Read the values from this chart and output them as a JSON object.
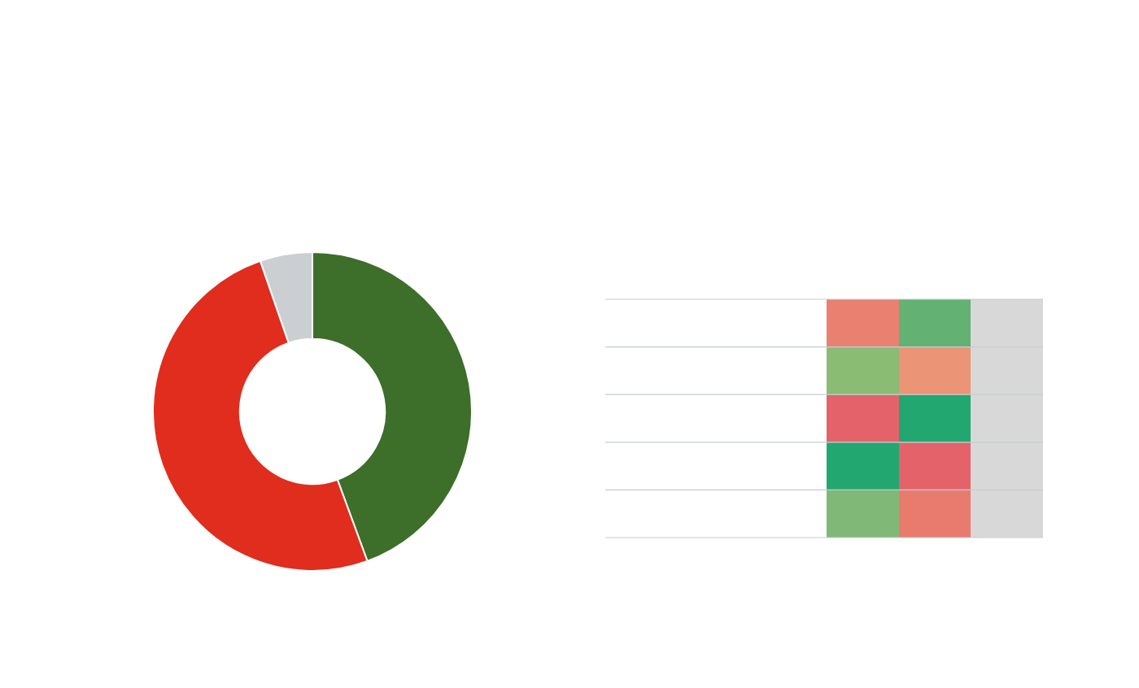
{
  "chart_data": {
    "type": "donut",
    "categories": [
      null,
      null,
      null
    ],
    "values": [
      44.4,
      50.3,
      5.3
    ],
    "colors": [
      "#3d6e2a",
      "#e02d1e",
      "#cbcfd2"
    ]
  }
}
